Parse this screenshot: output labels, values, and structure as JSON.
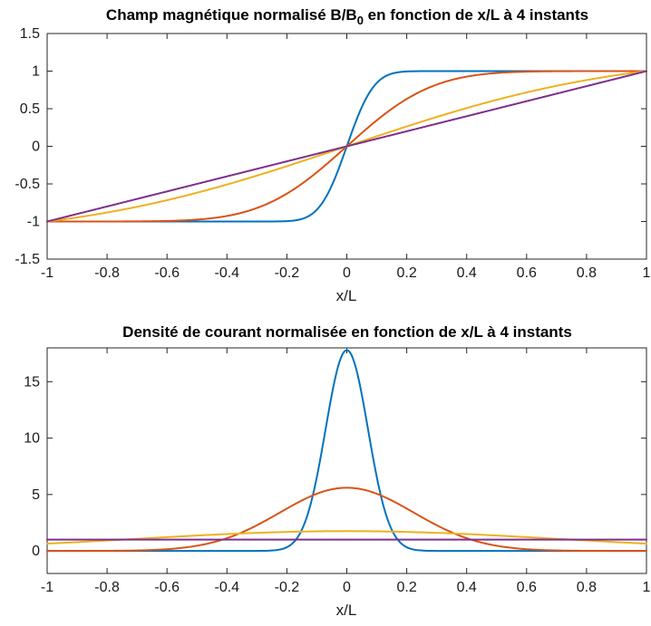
{
  "chart_data": [
    {
      "type": "line",
      "title_main": "Champ magnétique normalisé B/B",
      "title_sub": "0",
      "title_tail": " en fonction de x/L à 4 instants",
      "xlabel": "x/L",
      "ylabel": "",
      "xlim": [
        -1,
        1
      ],
      "ylim": [
        -1.5,
        1.5
      ],
      "xticks": [
        -1,
        -0.8,
        -0.6,
        -0.4,
        -0.2,
        0,
        0.2,
        0.4,
        0.6,
        0.8,
        1
      ],
      "xtick_labels": [
        "-1",
        "-0.8",
        "-0.6",
        "-0.4",
        "-0.2",
        "0",
        "0.2",
        "0.4",
        "0.6",
        "0.8",
        "1"
      ],
      "yticks": [
        -1.5,
        -1,
        -0.5,
        0,
        0.5,
        1,
        1.5
      ],
      "ytick_labels": [
        "-1.5",
        "-1",
        "-0.5",
        "0",
        "0.5",
        "1",
        "1.5"
      ],
      "grid": false,
      "legend": "none",
      "series": [
        {
          "color": "#0072BD",
          "model": "erf",
          "width": 0.1
        },
        {
          "color": "#D95319",
          "model": "erf",
          "width": 0.316
        },
        {
          "color": "#EDB120",
          "model": "erf",
          "width": 1.0
        },
        {
          "color": "#7E2F8E",
          "model": "linear"
        }
      ]
    },
    {
      "type": "line",
      "title_main": "Densité de courant normalisée en fonction de x/L à 4 instants",
      "xlabel": "x/L",
      "ylabel": "",
      "xlim": [
        -1,
        1
      ],
      "ylim": [
        -2,
        18
      ],
      "xticks": [
        -1,
        -0.8,
        -0.6,
        -0.4,
        -0.2,
        0,
        0.2,
        0.4,
        0.6,
        0.8,
        1
      ],
      "xtick_labels": [
        "-1",
        "-0.8",
        "-0.6",
        "-0.4",
        "-0.2",
        "0",
        "0.2",
        "0.4",
        "0.6",
        "0.8",
        "1"
      ],
      "yticks": [
        0,
        5,
        10,
        15
      ],
      "ytick_labels": [
        "0",
        "5",
        "10",
        "15"
      ],
      "grid": false,
      "legend": "none",
      "series": [
        {
          "color": "#0072BD",
          "model": "gauss",
          "width": 0.1,
          "peak": 17.8
        },
        {
          "color": "#D95319",
          "model": "gauss",
          "width": 0.316,
          "peak": 5.6
        },
        {
          "color": "#EDB120",
          "model": "gauss",
          "width": 1.0,
          "peak": 1.75
        },
        {
          "color": "#7E2F8E",
          "model": "constant",
          "value": 1.0
        }
      ]
    }
  ]
}
